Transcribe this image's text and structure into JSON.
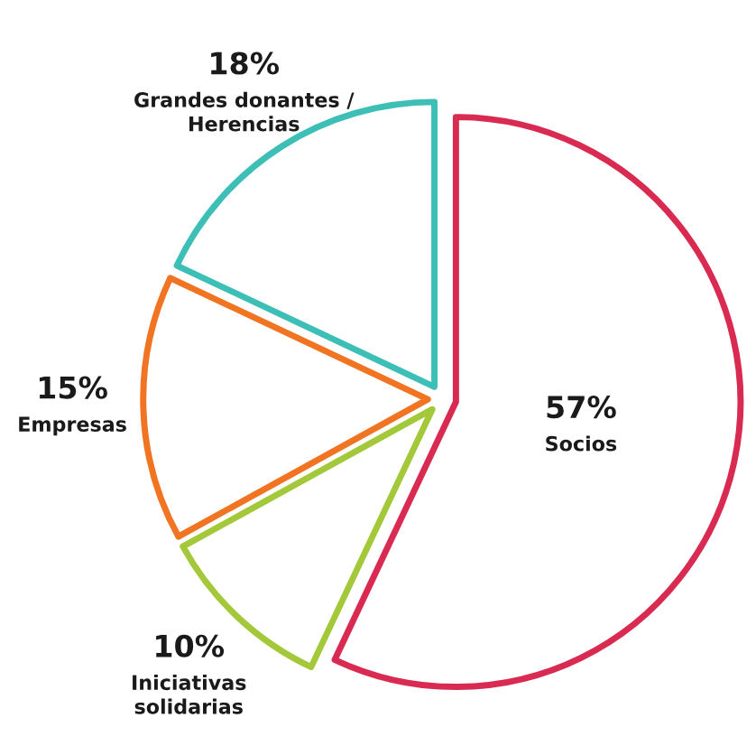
{
  "chart_data": {
    "type": "pie",
    "categories": [
      "Socios",
      "Iniciativas\nsolidarias",
      "Empresas",
      "Grandes donantes /\nHerencias"
    ],
    "values": [
      57,
      10,
      15,
      18
    ],
    "value_labels": [
      "57%",
      "10%",
      "15%",
      "18%"
    ],
    "colors": [
      "#d92b52",
      "#a3c93a",
      "#f07422",
      "#3dbfb8"
    ],
    "legend": false
  }
}
